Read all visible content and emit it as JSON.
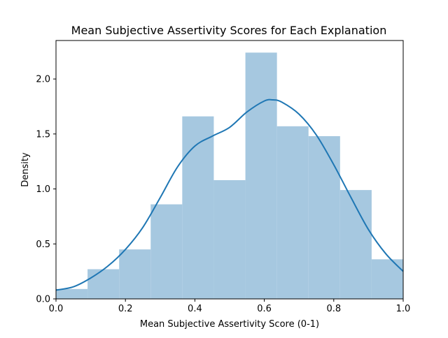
{
  "chart_data": {
    "type": "histogram",
    "title": "Mean Subjective Assertivity Scores for Each Explanation",
    "xlabel": "Mean Subjective Assertivity Score (0-1)",
    "ylabel": "Density",
    "xlim": [
      0.0,
      1.0
    ],
    "ylim": [
      0.0,
      2.35
    ],
    "xticks": [
      "0.0",
      "0.2",
      "0.4",
      "0.6",
      "0.8",
      "1.0"
    ],
    "yticks": [
      "0.0",
      "0.5",
      "1.0",
      "1.5",
      "2.0"
    ],
    "bins": [
      {
        "x0": 0.0,
        "x1": 0.0909,
        "value": 0.09
      },
      {
        "x0": 0.0909,
        "x1": 0.1818,
        "value": 0.27
      },
      {
        "x0": 0.1818,
        "x1": 0.2727,
        "value": 0.45
      },
      {
        "x0": 0.2727,
        "x1": 0.3636,
        "value": 0.86
      },
      {
        "x0": 0.3636,
        "x1": 0.4545,
        "value": 1.66
      },
      {
        "x0": 0.4545,
        "x1": 0.5455,
        "value": 1.08
      },
      {
        "x0": 0.5455,
        "x1": 0.6364,
        "value": 2.24
      },
      {
        "x0": 0.6364,
        "x1": 0.7273,
        "value": 1.57
      },
      {
        "x0": 0.7273,
        "x1": 0.8182,
        "value": 1.48
      },
      {
        "x0": 0.8182,
        "x1": 0.9091,
        "value": 0.99
      },
      {
        "x0": 0.9091,
        "x1": 1.0,
        "value": 0.36
      }
    ],
    "kde": {
      "x": [
        0.0,
        0.05,
        0.1,
        0.15,
        0.2,
        0.25,
        0.3,
        0.35,
        0.4,
        0.45,
        0.5,
        0.55,
        0.6,
        0.625,
        0.65,
        0.7,
        0.75,
        0.8,
        0.85,
        0.9,
        0.95,
        1.0
      ],
      "y": [
        0.08,
        0.11,
        0.19,
        0.3,
        0.45,
        0.65,
        0.92,
        1.2,
        1.39,
        1.48,
        1.56,
        1.7,
        1.8,
        1.81,
        1.79,
        1.68,
        1.49,
        1.22,
        0.92,
        0.63,
        0.41,
        0.25
      ]
    },
    "colors": {
      "bar": "#a6c8e0",
      "kde": "#1f77b4",
      "axis": "#000000"
    }
  }
}
